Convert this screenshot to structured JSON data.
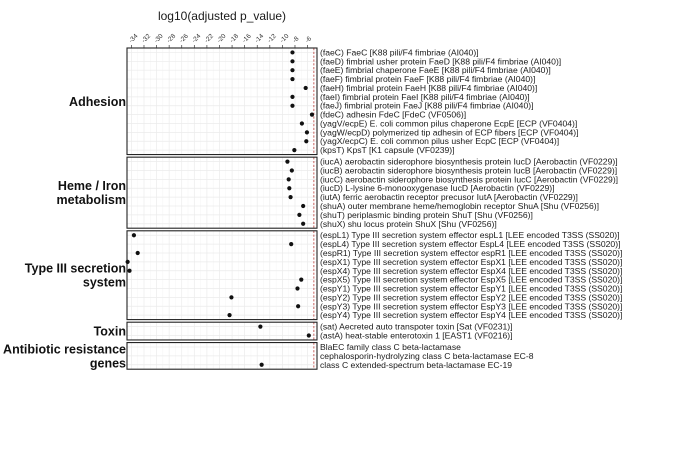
{
  "chart_data": {
    "type": "scatter",
    "title": "log10(adjusted p_value)",
    "x_ticks": [
      "-34",
      "-32",
      "-30",
      "-28",
      "-26",
      "-24",
      "-22",
      "-20",
      "-18",
      "-16",
      "-14",
      "-12",
      "-10",
      "-8",
      "-6"
    ],
    "xlim": [
      -34.7,
      -4.5
    ],
    "reference_line_x": -5,
    "groups": [
      {
        "label": "Adhesion",
        "lines": [
          "Adhesion"
        ],
        "rows": [
          {
            "label": "(faeC) FaeC [K88 pili/F4 fimbriae (AI040)]",
            "x": -8.4
          },
          {
            "label": "(faeD) fimbrial usher protein FaeD [K88 pili/F4 fimbriae (AI040)]",
            "x": -8.4
          },
          {
            "label": "(faeE) fimbrial chaperone FaeE [K88 pili/F4 fimbriae (AI040)]",
            "x": -8.4
          },
          {
            "label": "(faeF) fimbrial protein FaeF [K88 pili/F4 fimbriae (AI040)]",
            "x": -8.4
          },
          {
            "label": "(faeH) fimbrial protein FaeH [K88 pili/F4 fimbriae (AI040)]",
            "x": -6.3
          },
          {
            "label": "(faeI) fimbrial protein FaeI [K88 pili/F4 fimbriae (AI040)]",
            "x": -8.4
          },
          {
            "label": "(faeJ) fimbrial protein FaeJ [K88 pili/F4 fimbriae (AI040)]",
            "x": -8.4
          },
          {
            "label": "(fdeC) adhesin FdeC [FdeC (VF0506)]",
            "x": -5.3
          },
          {
            "label": "(yagV/ecpE) E. coli common pilus chaperone EcpE [ECP (VF0404)]",
            "x": -6.9
          },
          {
            "label": "(yagW/ecpD) polymerized tip adhesin of ECP fibers [ECP (VF0404)]",
            "x": -6.1
          },
          {
            "label": "(yagX/ecpC) E. coli common pilus usher EcpC [ECP (VF0404)]",
            "x": -6.2
          },
          {
            "label": "(kpsT) KpsT [K1 capsule (VF0239)]",
            "x": -8.1
          }
        ]
      },
      {
        "label": "Heme / Iron metabolism",
        "lines": [
          "Heme / Iron",
          "metabolism"
        ],
        "rows": [
          {
            "label": "(iucA) aerobactin siderophore biosynthesis protein IucD [Aerobactin (VF0229)]",
            "x": -9.2
          },
          {
            "label": "(iucB) aerobactin siderophore biosynthesis protein IucB [Aerobactin (VF0229)]",
            "x": -8.5
          },
          {
            "label": "(iucC) aerobactin siderophore biosynthesis protein IucC [Aerobactin (VF0229)]",
            "x": -9.0
          },
          {
            "label": "(iucD) L-lysine 6-monooxygenase IucD [Aerobactin (VF0229)]",
            "x": -8.9
          },
          {
            "label": "(iutA) ferric aerobactin receptor precusor IutA [Aerobactin (VF0229)]",
            "x": -8.7
          },
          {
            "label": "(shuA) outer membrane heme/hemoglobin receptor ShuA [Shu (VF0256)]",
            "x": -6.7
          },
          {
            "label": "(shuT) periplasmic binding protein ShuT [Shu (VF0256)]",
            "x": -7.3
          },
          {
            "label": "(shuX) shu locus protein ShuX [Shu (VF0256)]",
            "x": -6.7
          }
        ]
      },
      {
        "label": "Type III secretion system",
        "lines": [
          "Type III secretion",
          "system"
        ],
        "rows": [
          {
            "label": "(espL1) Type III secretion system effector espL1 [LEE encoded T3SS (SS020)]",
            "x": -33.6
          },
          {
            "label": "(espL4) Type III secretion system effector EspL4 [LEE encoded T3SS (SS020)]",
            "x": -8.6
          },
          {
            "label": "(espR1) Type III secretion system effector espR1 [LEE encoded T3SS (SS020)]",
            "x": -33.0
          },
          {
            "label": "(espX1) Type III secretion system effector EspX1 [LEE encoded T3SS (SS020)]",
            "x": -34.6
          },
          {
            "label": "(espX4) Type III secretion system effector EspX4 [LEE encoded T3SS (SS020)]",
            "x": -34.3
          },
          {
            "label": "(espX5) Type III secretion system effector EspX5 [LEE encoded T3SS (SS020)]",
            "x": -7.0
          },
          {
            "label": "(espY1) Type III secretion system effector EspY1 [LEE encoded T3SS (SS020)]",
            "x": -7.6
          },
          {
            "label": "(espY2) Type III secretion system effector EspY2 [LEE encoded T3SS (SS020)]",
            "x": -18.1
          },
          {
            "label": "(espY3) Type III secretion system effector EspY3 [LEE encoded T3SS (SS020)]",
            "x": -7.5
          },
          {
            "label": "(espY4) Type III secretion system effector EspY4 [LEE encoded T3SS (SS020)]",
            "x": -18.4
          }
        ]
      },
      {
        "label": "Toxin",
        "lines": [
          "Toxin"
        ],
        "rows": [
          {
            "label": "(sat) Aecreted auto transpoter toxin [Sat (VF0231)]",
            "x": -13.5
          },
          {
            "label": "(astA) heat-stable enterotoxin 1 [EAST1 (VF0216)]",
            "x": -5.8
          }
        ]
      },
      {
        "label": "Antibiotic resistance genes",
        "lines": [
          "Antibiotic resistance",
          "genes"
        ],
        "rows": [
          {
            "label": "BlaEC family class C beta-lactamase",
            "x": null
          },
          {
            "label": "cephalosporin-hydrolyzing class C beta-lactamase EC-8",
            "x": null
          },
          {
            "label": "class C extended-spectrum beta-lactamase EC-19",
            "x": -13.3
          }
        ]
      }
    ]
  }
}
